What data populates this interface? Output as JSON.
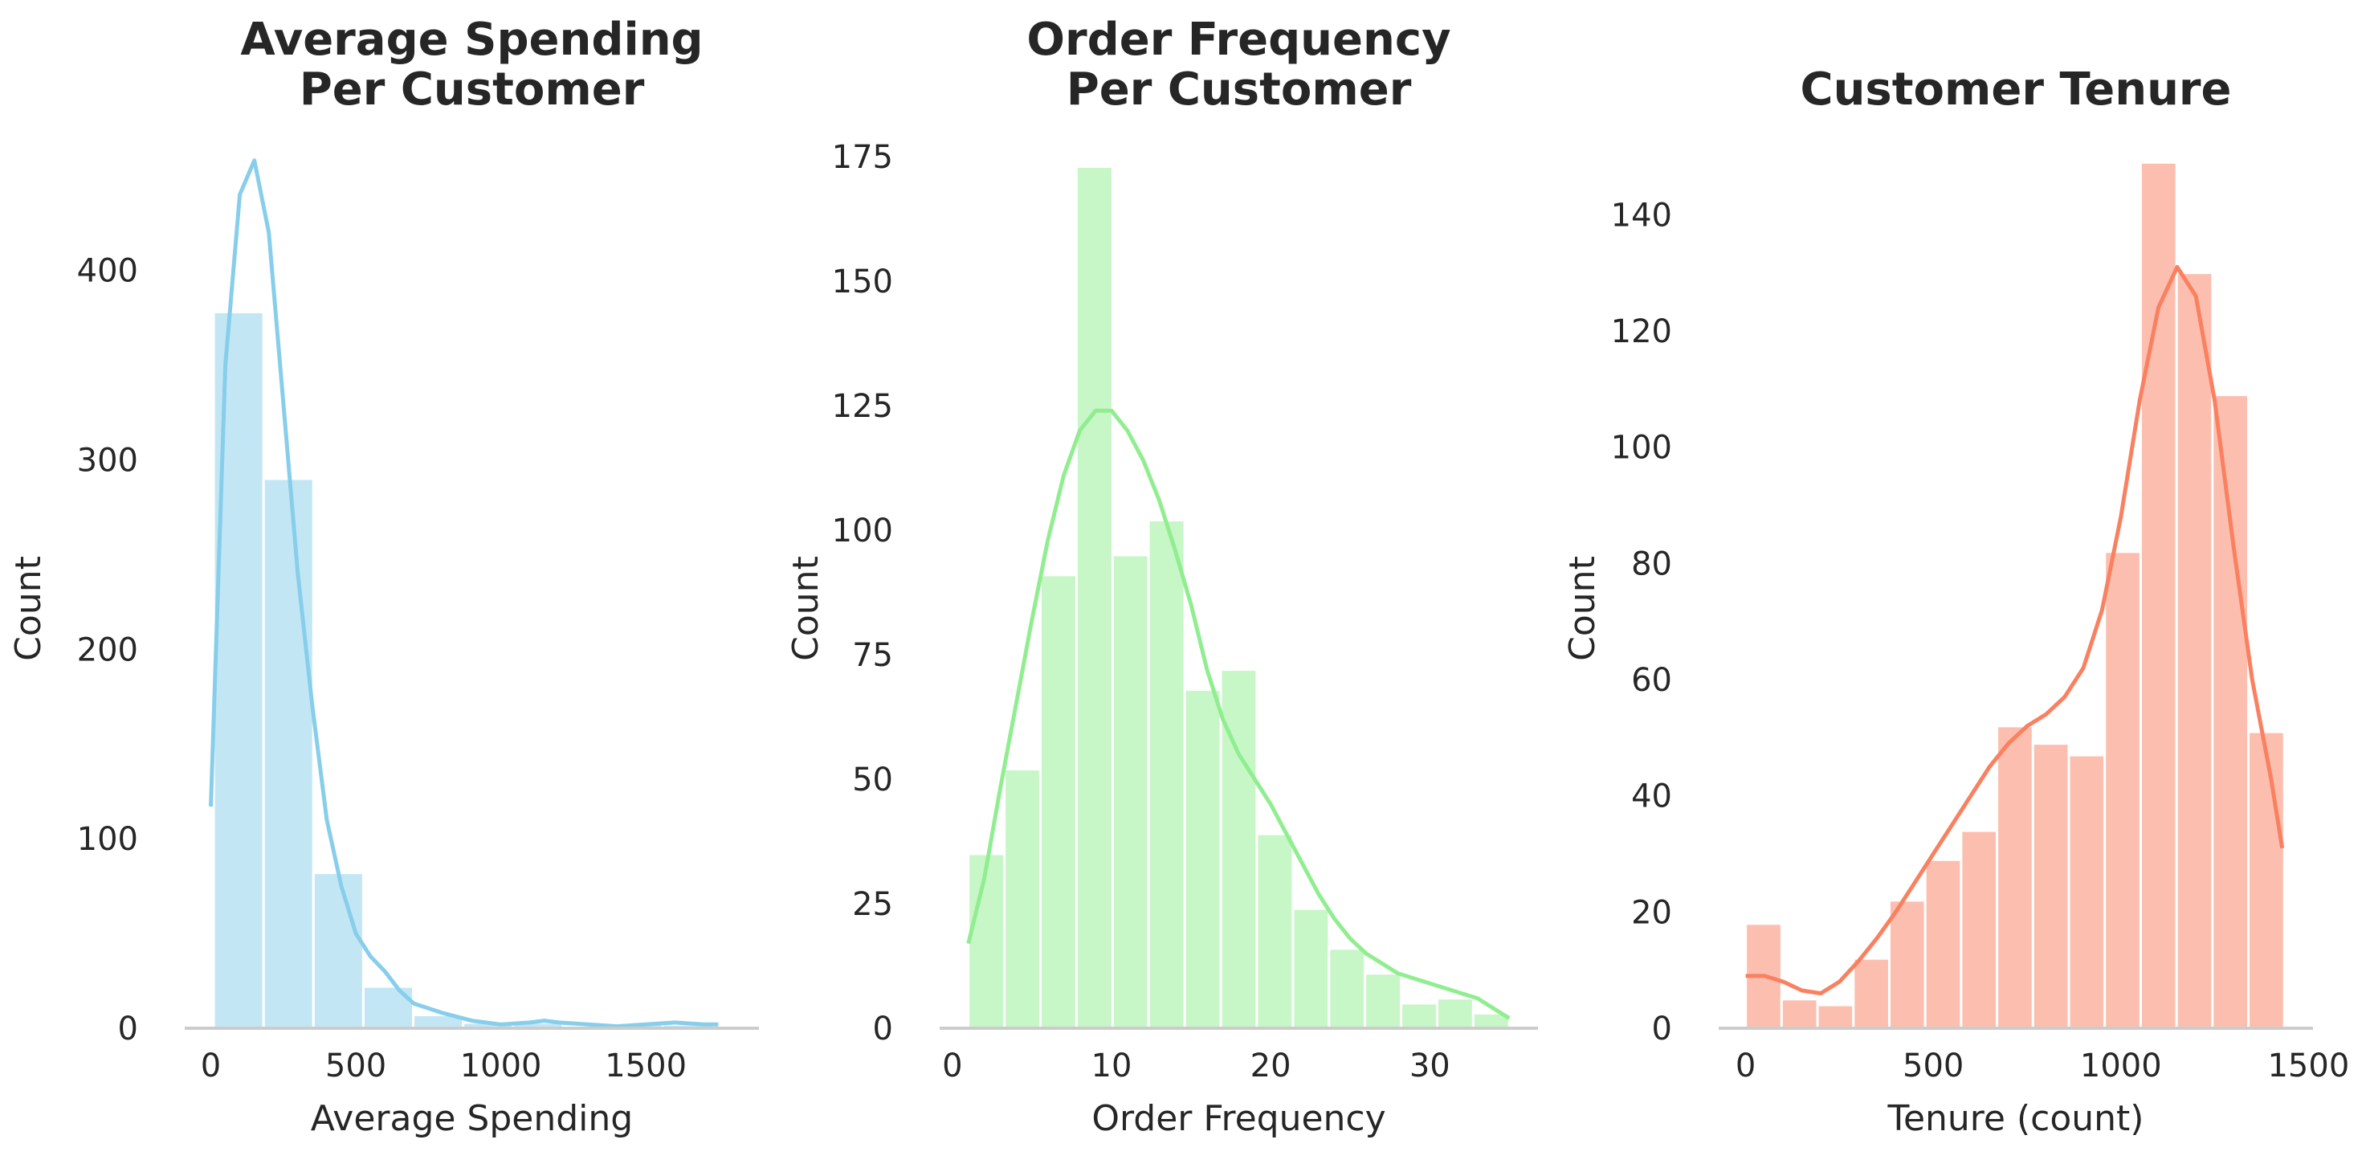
{
  "chart_data": [
    {
      "type": "histogram",
      "title": [
        "Average Spending",
        "Per Customer"
      ],
      "xlabel": "Average Spending",
      "ylabel": "Count",
      "color": "#87CEEB",
      "xlim": [
        -90,
        1890
      ],
      "ylim": [
        0,
        460
      ],
      "xticks": [
        0,
        500,
        1000,
        1500
      ],
      "yticks": [
        0,
        100,
        200,
        300,
        400
      ],
      "bins": [
        {
          "x0": 10,
          "x1": 182,
          "count": 378
        },
        {
          "x0": 182,
          "x1": 354,
          "count": 290
        },
        {
          "x0": 354,
          "x1": 526,
          "count": 82
        },
        {
          "x0": 526,
          "x1": 698,
          "count": 22
        },
        {
          "x0": 698,
          "x1": 870,
          "count": 7
        },
        {
          "x0": 870,
          "x1": 1042,
          "count": 3
        },
        {
          "x0": 1042,
          "x1": 1214,
          "count": 3
        },
        {
          "x0": 1214,
          "x1": 1386,
          "count": 1
        },
        {
          "x0": 1386,
          "x1": 1558,
          "count": 2
        },
        {
          "x0": 1558,
          "x1": 1730,
          "count": 2
        }
      ],
      "kde": [
        [
          0,
          117
        ],
        [
          50,
          350
        ],
        [
          100,
          440
        ],
        [
          150,
          458
        ],
        [
          200,
          420
        ],
        [
          250,
          330
        ],
        [
          300,
          240
        ],
        [
          350,
          170
        ],
        [
          400,
          110
        ],
        [
          450,
          75
        ],
        [
          500,
          50
        ],
        [
          550,
          38
        ],
        [
          600,
          30
        ],
        [
          650,
          20
        ],
        [
          700,
          13
        ],
        [
          800,
          8
        ],
        [
          900,
          4
        ],
        [
          1000,
          2
        ],
        [
          1100,
          3
        ],
        [
          1150,
          4
        ],
        [
          1200,
          3
        ],
        [
          1300,
          2
        ],
        [
          1400,
          1
        ],
        [
          1500,
          2
        ],
        [
          1600,
          3
        ],
        [
          1700,
          2
        ],
        [
          1750,
          2
        ]
      ]
    },
    {
      "type": "histogram",
      "title": [
        "Order Frequency",
        "Per Customer"
      ],
      "xlabel": "Order Frequency",
      "ylabel": "Count",
      "color": "#90EE90",
      "xlim": [
        -0.8,
        36.8
      ],
      "ylim": [
        0,
        175
      ],
      "xticks": [
        0,
        10,
        20,
        30
      ],
      "yticks": [
        0,
        25,
        50,
        75,
        100,
        125,
        150,
        175
      ],
      "bins": [
        {
          "x0": 1,
          "x1": 3.27,
          "count": 35
        },
        {
          "x0": 3.27,
          "x1": 5.53,
          "count": 52
        },
        {
          "x0": 5.53,
          "x1": 7.8,
          "count": 91
        },
        {
          "x0": 7.8,
          "x1": 10.07,
          "count": 173
        },
        {
          "x0": 10.07,
          "x1": 12.33,
          "count": 95
        },
        {
          "x0": 12.33,
          "x1": 14.6,
          "count": 102
        },
        {
          "x0": 14.6,
          "x1": 16.87,
          "count": 68
        },
        {
          "x0": 16.87,
          "x1": 19.13,
          "count": 72
        },
        {
          "x0": 19.13,
          "x1": 21.4,
          "count": 39
        },
        {
          "x0": 21.4,
          "x1": 23.67,
          "count": 24
        },
        {
          "x0": 23.67,
          "x1": 25.93,
          "count": 16
        },
        {
          "x0": 25.93,
          "x1": 28.2,
          "count": 11
        },
        {
          "x0": 28.2,
          "x1": 30.47,
          "count": 5
        },
        {
          "x0": 30.47,
          "x1": 32.73,
          "count": 6
        },
        {
          "x0": 32.73,
          "x1": 35,
          "count": 3
        }
      ],
      "kde": [
        [
          1,
          17
        ],
        [
          2,
          30
        ],
        [
          3,
          48
        ],
        [
          4,
          65
        ],
        [
          5,
          82
        ],
        [
          6,
          98
        ],
        [
          7,
          111
        ],
        [
          8,
          120
        ],
        [
          9,
          124
        ],
        [
          10,
          124
        ],
        [
          11,
          120
        ],
        [
          12,
          114
        ],
        [
          13,
          106
        ],
        [
          14,
          96
        ],
        [
          15,
          85
        ],
        [
          16,
          72
        ],
        [
          17,
          62
        ],
        [
          18,
          55
        ],
        [
          19,
          50
        ],
        [
          20,
          45
        ],
        [
          21,
          39
        ],
        [
          22,
          33
        ],
        [
          23,
          27
        ],
        [
          24,
          22
        ],
        [
          25,
          18
        ],
        [
          26,
          15
        ],
        [
          27,
          13
        ],
        [
          28,
          11
        ],
        [
          29,
          10
        ],
        [
          30,
          9
        ],
        [
          31,
          8
        ],
        [
          32,
          7
        ],
        [
          33,
          6
        ],
        [
          34,
          4
        ],
        [
          35,
          2
        ]
      ]
    },
    {
      "type": "histogram",
      "title": [
        "Customer Tenure"
      ],
      "xlabel": "Tenure (count)",
      "ylabel": "Count",
      "color": "#FA8060",
      "xlim": [
        -72,
        1512
      ],
      "ylim": [
        0,
        150
      ],
      "xticks": [
        0,
        500,
        1000,
        1500
      ],
      "yticks": [
        0,
        20,
        40,
        60,
        80,
        100,
        120,
        140
      ],
      "bins": [
        {
          "x0": 0,
          "x1": 95.7,
          "count": 18
        },
        {
          "x0": 95.7,
          "x1": 191.4,
          "count": 5
        },
        {
          "x0": 191.4,
          "x1": 287.1,
          "count": 4
        },
        {
          "x0": 287.1,
          "x1": 382.8,
          "count": 12
        },
        {
          "x0": 382.8,
          "x1": 478.5,
          "count": 22
        },
        {
          "x0": 478.5,
          "x1": 574.2,
          "count": 29
        },
        {
          "x0": 574.2,
          "x1": 669.9,
          "count": 34
        },
        {
          "x0": 669.9,
          "x1": 765.6,
          "count": 52
        },
        {
          "x0": 765.6,
          "x1": 861.3,
          "count": 49
        },
        {
          "x0": 861.3,
          "x1": 957,
          "count": 47
        },
        {
          "x0": 957,
          "x1": 1052.7,
          "count": 82
        },
        {
          "x0": 1052.7,
          "x1": 1148.4,
          "count": 149
        },
        {
          "x0": 1148.4,
          "x1": 1244.1,
          "count": 130
        },
        {
          "x0": 1244.1,
          "x1": 1339.8,
          "count": 109
        },
        {
          "x0": 1339.8,
          "x1": 1435.5,
          "count": 51
        }
      ],
      "kde": [
        [
          0,
          9
        ],
        [
          50,
          9
        ],
        [
          100,
          8
        ],
        [
          150,
          6.5
        ],
        [
          200,
          6
        ],
        [
          250,
          8
        ],
        [
          300,
          11.5
        ],
        [
          350,
          15.5
        ],
        [
          400,
          20
        ],
        [
          450,
          25
        ],
        [
          500,
          30
        ],
        [
          550,
          35
        ],
        [
          600,
          40
        ],
        [
          650,
          45
        ],
        [
          700,
          49
        ],
        [
          750,
          52
        ],
        [
          800,
          54
        ],
        [
          850,
          57
        ],
        [
          900,
          62
        ],
        [
          950,
          72
        ],
        [
          1000,
          88
        ],
        [
          1050,
          108
        ],
        [
          1100,
          124
        ],
        [
          1150,
          131
        ],
        [
          1200,
          126
        ],
        [
          1250,
          108
        ],
        [
          1300,
          83
        ],
        [
          1350,
          60
        ],
        [
          1400,
          43
        ],
        [
          1430,
          31
        ]
      ]
    }
  ]
}
